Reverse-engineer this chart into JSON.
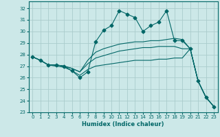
{
  "xlabel": "Humidex (Indice chaleur)",
  "background_color": "#cce8e8",
  "grid_color": "#aacccc",
  "line_color": "#006666",
  "xlim": [
    -0.5,
    23.5
  ],
  "ylim": [
    23,
    32.6
  ],
  "yticks": [
    23,
    24,
    25,
    26,
    27,
    28,
    29,
    30,
    31,
    32
  ],
  "xticks": [
    0,
    1,
    2,
    3,
    4,
    5,
    6,
    7,
    8,
    9,
    10,
    11,
    12,
    13,
    14,
    15,
    16,
    17,
    18,
    19,
    20,
    21,
    22,
    23
  ],
  "series": [
    {
      "x": [
        0,
        1,
        2,
        3,
        4,
        5,
        6,
        7,
        8,
        9,
        10,
        11,
        12,
        13,
        14,
        15,
        16,
        17,
        18,
        19,
        20,
        21,
        22,
        23
      ],
      "y": [
        27.8,
        27.5,
        27.1,
        27.1,
        27.0,
        26.6,
        26.0,
        26.5,
        29.1,
        30.1,
        30.5,
        31.8,
        31.5,
        31.2,
        30.0,
        30.5,
        30.8,
        31.8,
        29.2,
        29.2,
        28.5,
        25.7,
        24.3,
        23.5
      ],
      "marker": "D",
      "markersize": 2.5
    },
    {
      "x": [
        0,
        1,
        2,
        3,
        4,
        5,
        6,
        7,
        8,
        9,
        10,
        11,
        12,
        13,
        14,
        15,
        16,
        17,
        18,
        19,
        20,
        21,
        22,
        23
      ],
      "y": [
        27.8,
        27.5,
        27.1,
        27.1,
        27.0,
        26.8,
        26.5,
        27.5,
        28.2,
        28.5,
        28.7,
        28.9,
        29.0,
        29.1,
        29.1,
        29.2,
        29.2,
        29.3,
        29.4,
        29.3,
        28.5,
        25.7,
        24.3,
        23.5
      ],
      "marker": null,
      "markersize": 0
    },
    {
      "x": [
        0,
        1,
        2,
        3,
        4,
        5,
        6,
        7,
        8,
        9,
        10,
        11,
        12,
        13,
        14,
        15,
        16,
        17,
        18,
        19,
        20,
        21,
        22,
        23
      ],
      "y": [
        27.8,
        27.5,
        27.1,
        27.1,
        27.0,
        26.8,
        26.5,
        27.2,
        27.7,
        27.9,
        28.1,
        28.3,
        28.4,
        28.5,
        28.6,
        28.6,
        28.7,
        28.7,
        28.7,
        28.5,
        28.5,
        25.7,
        24.3,
        23.5
      ],
      "marker": null,
      "markersize": 0
    },
    {
      "x": [
        0,
        1,
        2,
        3,
        4,
        5,
        6,
        7,
        8,
        9,
        10,
        11,
        12,
        13,
        14,
        15,
        16,
        17,
        18,
        19,
        20,
        21,
        22,
        23
      ],
      "y": [
        27.8,
        27.5,
        27.1,
        27.0,
        26.9,
        26.6,
        26.2,
        26.7,
        27.0,
        27.1,
        27.2,
        27.3,
        27.4,
        27.5,
        27.5,
        27.5,
        27.6,
        27.6,
        27.7,
        27.7,
        28.5,
        25.7,
        24.3,
        23.5
      ],
      "marker": null,
      "markersize": 0
    }
  ]
}
